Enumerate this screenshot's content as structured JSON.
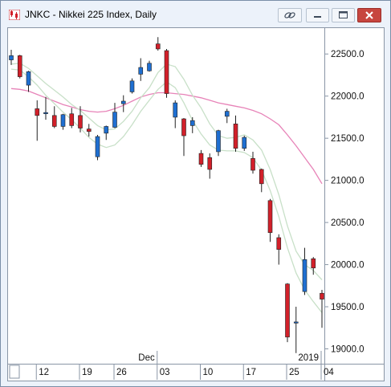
{
  "window": {
    "title": "JNKC - Nikkei 225 Index, Daily",
    "buttons": [
      "link-icon",
      "minimize-icon",
      "maximize-icon",
      "close-icon"
    ]
  },
  "colors": {
    "up": "#1f6fd1",
    "down": "#d2202a",
    "ma_fast": "#c8e0c8",
    "ma_slow": "#e783b8",
    "close_button": "#c7463f"
  },
  "chart_data": {
    "type": "candlestick",
    "title": "",
    "ylim": [
      18900,
      22750
    ],
    "y_ticks": [
      "22500.0",
      "22000.0",
      "21500.0",
      "21000.0",
      "20500.0",
      "20000.0",
      "19500.0",
      "19000.0"
    ],
    "y_tick_values": [
      22500,
      22000,
      21500,
      21000,
      20500,
      20000,
      19500,
      19000
    ],
    "x_ticks": [
      {
        "label": "12",
        "index": 3
      },
      {
        "label": "19",
        "index": 8
      },
      {
        "label": "26",
        "index": 12
      },
      {
        "label": "03",
        "index": 17
      },
      {
        "label": "10",
        "index": 22
      },
      {
        "label": "17",
        "index": 27
      },
      {
        "label": "25",
        "index": 32
      },
      {
        "label": "04",
        "index": 36
      }
    ],
    "period_labels": [
      {
        "label": "Dec",
        "index": 17
      },
      {
        "label": "2019",
        "index": 36
      }
    ],
    "candles": [
      {
        "o": 22430,
        "h": 22550,
        "l": 22370,
        "c": 22480
      },
      {
        "o": 22480,
        "h": 22490,
        "l": 22210,
        "c": 22230
      },
      {
        "o": 22130,
        "h": 22300,
        "l": 22050,
        "c": 22290
      },
      {
        "o": 21850,
        "h": 21950,
        "l": 21470,
        "c": 21770
      },
      {
        "o": 21800,
        "h": 21990,
        "l": 21720,
        "c": 21805
      },
      {
        "o": 21770,
        "h": 21880,
        "l": 21620,
        "c": 21640
      },
      {
        "o": 21640,
        "h": 21790,
        "l": 21600,
        "c": 21780
      },
      {
        "o": 21790,
        "h": 21860,
        "l": 21620,
        "c": 21650
      },
      {
        "o": 21770,
        "h": 21880,
        "l": 21570,
        "c": 21620
      },
      {
        "o": 21610,
        "h": 21670,
        "l": 21520,
        "c": 21580
      },
      {
        "o": 21280,
        "h": 21540,
        "l": 21240,
        "c": 21520
      },
      {
        "o": 21560,
        "h": 21650,
        "l": 21480,
        "c": 21640
      },
      {
        "o": 21630,
        "h": 21920,
        "l": 21620,
        "c": 21810
      },
      {
        "o": 21910,
        "h": 22010,
        "l": 21810,
        "c": 21940
      },
      {
        "o": 22050,
        "h": 22210,
        "l": 22030,
        "c": 22180
      },
      {
        "o": 22260,
        "h": 22450,
        "l": 22180,
        "c": 22340
      },
      {
        "o": 22300,
        "h": 22420,
        "l": 22290,
        "c": 22390
      },
      {
        "o": 22620,
        "h": 22700,
        "l": 22540,
        "c": 22560
      },
      {
        "o": 22540,
        "h": 22560,
        "l": 21980,
        "c": 22030
      },
      {
        "o": 21750,
        "h": 21950,
        "l": 21620,
        "c": 21920
      },
      {
        "o": 21730,
        "h": 21740,
        "l": 21290,
        "c": 21530
      },
      {
        "o": 21650,
        "h": 21750,
        "l": 21560,
        "c": 21710
      },
      {
        "o": 21320,
        "h": 21360,
        "l": 21160,
        "c": 21190
      },
      {
        "o": 21270,
        "h": 21320,
        "l": 21020,
        "c": 21130
      },
      {
        "o": 21340,
        "h": 21600,
        "l": 21290,
        "c": 21590
      },
      {
        "o": 21760,
        "h": 21850,
        "l": 21680,
        "c": 21820
      },
      {
        "o": 21670,
        "h": 21770,
        "l": 21340,
        "c": 21380
      },
      {
        "o": 21380,
        "h": 21530,
        "l": 21350,
        "c": 21510
      },
      {
        "o": 21260,
        "h": 21340,
        "l": 21080,
        "c": 21120
      },
      {
        "o": 21130,
        "h": 21140,
        "l": 20860,
        "c": 20960
      },
      {
        "o": 20760,
        "h": 20780,
        "l": 20270,
        "c": 20380
      },
      {
        "o": 20320,
        "h": 20360,
        "l": 20000,
        "c": 20180
      },
      {
        "o": 19770,
        "h": 19780,
        "l": 19080,
        "c": 19140
      },
      {
        "o": 19310,
        "h": 19500,
        "l": 18950,
        "c": 19320
      },
      {
        "o": 19680,
        "h": 20200,
        "l": 19640,
        "c": 20060
      },
      {
        "o": 20070,
        "h": 20090,
        "l": 19880,
        "c": 19960
      },
      {
        "o": 19660,
        "h": 19700,
        "l": 19250,
        "c": 19590
      }
    ],
    "ma_fast_upper": [
      22380,
      22390,
      22330,
      22240,
      22150,
      22070,
      21990,
      21900,
      21830,
      21740,
      21650,
      21600,
      21610,
      21700,
      21820,
      21980,
      22100,
      22280,
      22380,
      22350,
      22200,
      22010,
      21860,
      21670,
      21530,
      21500,
      21510,
      21540,
      21480,
      21360,
      21130,
      20830,
      20460,
      20160,
      20000,
      19930,
      19820
    ],
    "ma_fast_lower": [
      22320,
      22310,
      22230,
      22130,
      22010,
      21910,
      21810,
      21720,
      21620,
      21510,
      21430,
      21390,
      21420,
      21520,
      21660,
      21820,
      21950,
      22080,
      22170,
      22100,
      21920,
      21710,
      21550,
      21420,
      21360,
      21350,
      21350,
      21330,
      21270,
      21120,
      20880,
      20570,
      20200,
      19900,
      19700,
      19560,
      19430
    ],
    "ma_slow": [
      22090,
      22080,
      22060,
      22020,
      21980,
      21940,
      21900,
      21870,
      21840,
      21820,
      21810,
      21820,
      21850,
      21890,
      21940,
      21990,
      22020,
      22040,
      22040,
      22030,
      22020,
      22000,
      21980,
      21950,
      21920,
      21900,
      21880,
      21860,
      21830,
      21790,
      21730,
      21660,
      21540,
      21410,
      21270,
      21130,
      20960
    ]
  }
}
